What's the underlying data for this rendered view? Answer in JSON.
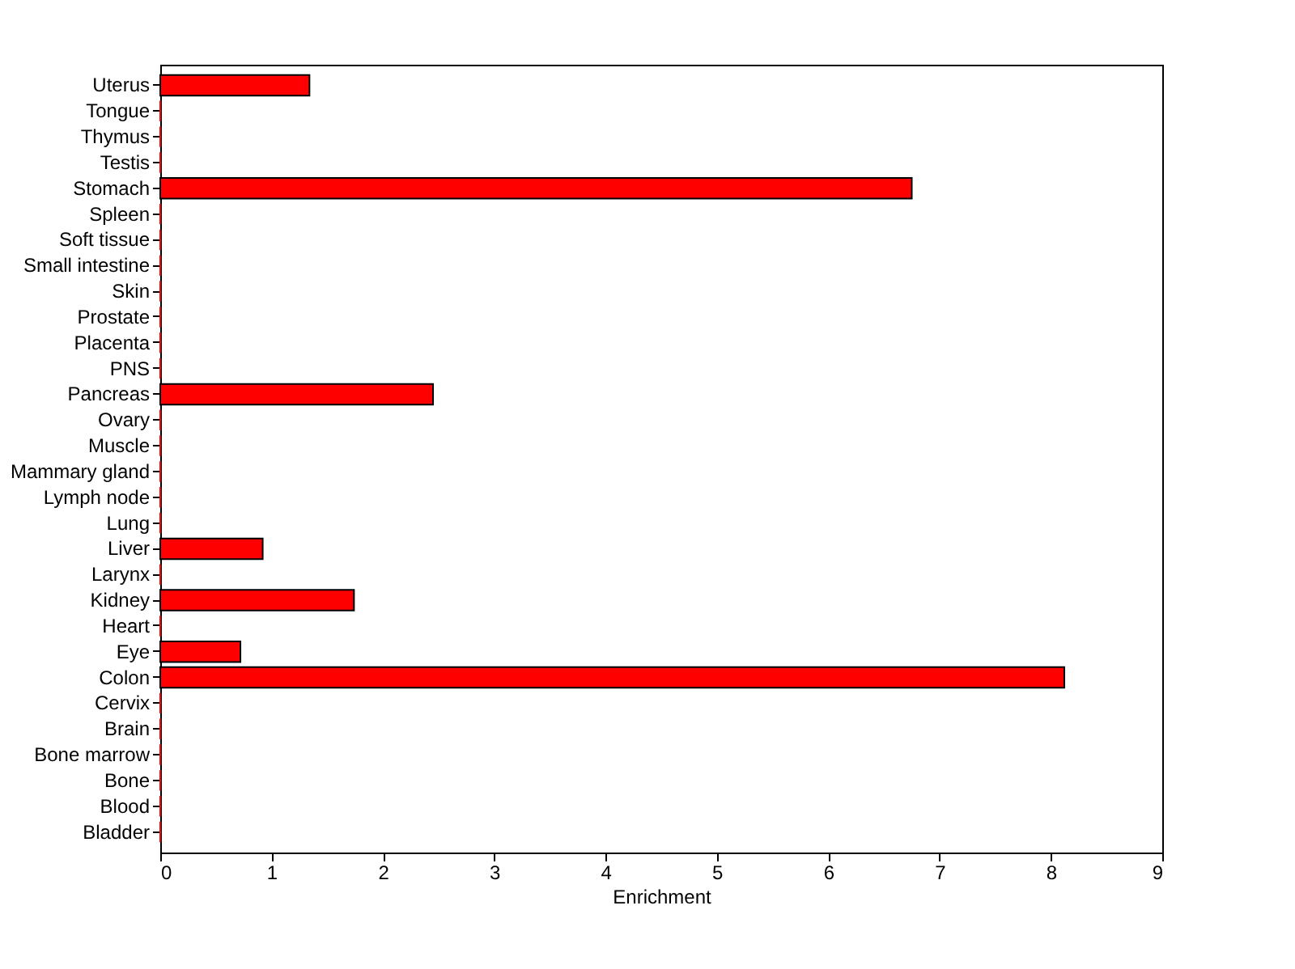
{
  "chart_data": {
    "type": "bar",
    "orientation": "horizontal",
    "xlabel": "Enrichment",
    "color": "#ff0000",
    "categories": [
      "Uterus",
      "Tongue",
      "Thymus",
      "Testis",
      "Stomach",
      "Spleen",
      "Soft tissue",
      "Small intestine",
      "Skin",
      "Prostate",
      "Placenta",
      "PNS",
      "Pancreas",
      "Ovary",
      "Muscle",
      "Mammary gland",
      "Lymph node",
      "Lung",
      "Liver",
      "Larynx",
      "Kidney",
      "Heart",
      "Eye",
      "Colon",
      "Cervix",
      "Brain",
      "Bone marrow",
      "Bone",
      "Blood",
      "Bladder"
    ],
    "values": [
      1.34,
      0,
      0,
      0,
      6.75,
      0,
      0,
      0,
      0,
      0,
      0,
      0,
      2.45,
      0,
      0,
      0,
      0,
      0,
      0.92,
      0,
      1.74,
      0,
      0.72,
      8.12,
      0,
      0,
      0,
      0,
      0,
      0
    ],
    "xlim": [
      0,
      9
    ],
    "xticks": [
      0,
      1,
      2,
      3,
      4,
      5,
      6,
      7,
      8,
      9
    ],
    "grid": false
  }
}
